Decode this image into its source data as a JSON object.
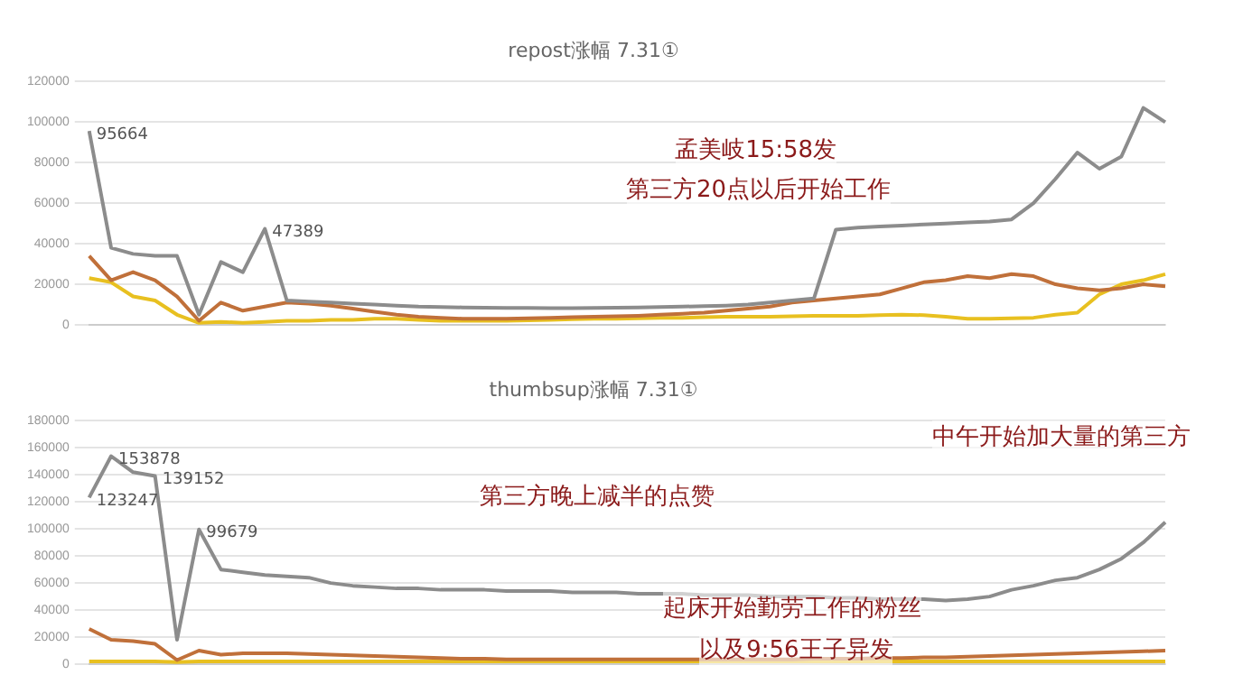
{
  "chart_data": [
    {
      "type": "line",
      "title": "repost涨幅 7.31①",
      "categories": [
        null,
        null,
        null,
        null,
        null,
        null,
        null,
        null,
        null,
        null,
        null,
        null,
        null,
        null,
        null,
        null,
        null,
        null,
        null,
        null,
        null,
        null,
        null,
        null,
        null,
        null,
        null,
        null,
        null,
        null,
        null,
        null,
        null,
        null,
        null,
        null,
        null,
        null,
        null,
        null,
        null,
        null,
        null,
        null,
        null,
        null,
        null,
        null,
        null,
        null
      ],
      "series": [
        {
          "color": "#8c8c8c",
          "values": [
            95664,
            38000,
            35000,
            34000,
            34000,
            5000,
            31000,
            26000,
            47389,
            12000,
            11500,
            11000,
            10500,
            10000,
            9500,
            9000,
            8800,
            8600,
            8500,
            8400,
            8300,
            8200,
            8200,
            8300,
            8500,
            8600,
            8800,
            9000,
            9200,
            9500,
            10000,
            11000,
            12000,
            13000,
            47000,
            48000,
            48500,
            49000,
            49500,
            50000,
            50500,
            51000,
            52000,
            60000,
            72000,
            85000,
            77000,
            83000,
            107000,
            100000
          ],
          "value_labels": [
            "95664",
            null,
            null,
            null,
            null,
            null,
            null,
            null,
            "47389",
            null,
            null,
            null,
            null,
            null,
            null,
            null,
            null,
            null,
            null,
            null,
            null,
            null,
            null,
            null,
            null,
            null,
            null,
            null,
            null,
            null,
            null,
            null,
            null,
            null,
            null,
            null,
            null,
            null,
            null,
            null,
            null,
            null,
            null,
            null,
            null,
            null,
            null,
            null,
            null,
            null
          ]
        },
        {
          "color": "#c0703a",
          "values": [
            34000,
            22000,
            26000,
            22000,
            14000,
            2000,
            11000,
            7000,
            9000,
            11000,
            10500,
            9500,
            8000,
            6500,
            5000,
            4000,
            3500,
            3000,
            3000,
            3000,
            3200,
            3500,
            3800,
            4000,
            4200,
            4500,
            5000,
            5500,
            6000,
            7000,
            8000,
            9000,
            11000,
            12000,
            13000,
            14000,
            15000,
            18000,
            21000,
            22000,
            24000,
            23000,
            25000,
            24000,
            20000,
            18000,
            17000,
            18000,
            20000,
            19000
          ]
        },
        {
          "color": "#e8c020",
          "values": [
            23000,
            21000,
            14000,
            12000,
            5000,
            1000,
            1500,
            1000,
            1500,
            2000,
            2000,
            2500,
            2500,
            3000,
            3000,
            2500,
            2000,
            2000,
            2000,
            2000,
            2200,
            2500,
            2800,
            3000,
            3000,
            3200,
            3500,
            3500,
            3800,
            4000,
            4000,
            4000,
            4200,
            4500,
            4500,
            4500,
            4800,
            5000,
            4800,
            4000,
            3000,
            3000,
            3200,
            3500,
            5000,
            6000,
            15000,
            20000,
            22000,
            25000
          ]
        }
      ],
      "ylim": [
        0,
        120000
      ],
      "yticks": [
        0,
        20000,
        40000,
        60000,
        80000,
        100000,
        120000
      ],
      "grid": "y",
      "annotations": [
        "孟美岐15:58发",
        "第三方20点以后开始工作"
      ]
    },
    {
      "type": "line",
      "title": "thumbsup涨幅 7.31①",
      "categories": [
        null,
        null,
        null,
        null,
        null,
        null,
        null,
        null,
        null,
        null,
        null,
        null,
        null,
        null,
        null,
        null,
        null,
        null,
        null,
        null,
        null,
        null,
        null,
        null,
        null,
        null,
        null,
        null,
        null,
        null,
        null,
        null,
        null,
        null,
        null,
        null,
        null,
        null,
        null,
        null,
        null,
        null,
        null,
        null,
        null,
        null,
        null,
        null,
        null,
        null
      ],
      "series": [
        {
          "color": "#8c8c8c",
          "values": [
            123247,
            153878,
            142000,
            139152,
            18000,
            99679,
            70000,
            68000,
            66000,
            65000,
            64000,
            60000,
            58000,
            57000,
            56000,
            56000,
            55000,
            55000,
            55000,
            54000,
            54000,
            54000,
            53000,
            53000,
            53000,
            52000,
            52000,
            52000,
            51000,
            51000,
            51000,
            50000,
            50000,
            50000,
            49000,
            49000,
            48000,
            48000,
            48000,
            47000,
            48000,
            50000,
            55000,
            58000,
            62000,
            64000,
            70000,
            78000,
            90000,
            105000
          ],
          "value_labels": [
            "123247",
            "153878",
            null,
            "139152",
            null,
            "99679",
            null,
            null,
            null,
            null,
            null,
            null,
            null,
            null,
            null,
            null,
            null,
            null,
            null,
            null,
            null,
            null,
            null,
            null,
            null,
            null,
            null,
            null,
            null,
            null,
            null,
            null,
            null,
            null,
            null,
            null,
            null,
            null,
            null,
            null,
            null,
            null,
            null,
            null,
            null,
            null,
            null,
            null,
            null,
            null
          ]
        },
        {
          "color": "#c0703a",
          "values": [
            26000,
            18000,
            17000,
            15000,
            3000,
            10000,
            7000,
            8000,
            8000,
            8000,
            7500,
            7000,
            6500,
            6000,
            5500,
            5000,
            4500,
            4000,
            4000,
            3500,
            3500,
            3500,
            3500,
            3500,
            3500,
            3500,
            3500,
            3500,
            3500,
            3500,
            3500,
            3500,
            3500,
            4000,
            4000,
            4000,
            4500,
            4500,
            5000,
            5000,
            5500,
            6000,
            6500,
            7000,
            7500,
            8000,
            8500,
            9000,
            9500,
            10000
          ]
        },
        {
          "color": "#e8c020",
          "values": [
            2000,
            2000,
            2000,
            2000,
            1500,
            2000,
            2000,
            2000,
            2000,
            2000,
            2000,
            2000,
            2000,
            2000,
            2000,
            2000,
            2000,
            2000,
            2000,
            2000,
            2000,
            2000,
            2000,
            2000,
            2000,
            2000,
            2000,
            2000,
            2000,
            2000,
            2000,
            2000,
            2000,
            2000,
            2000,
            2000,
            2000,
            2000,
            2000,
            2000,
            2000,
            2000,
            2000,
            2000,
            2000,
            2000,
            2000,
            2000,
            2000,
            2000
          ]
        }
      ],
      "ylim": [
        0,
        180000
      ],
      "yticks": [
        0,
        20000,
        40000,
        60000,
        80000,
        100000,
        120000,
        140000,
        160000,
        180000
      ],
      "grid": "y",
      "annotations": [
        "中午开始加大量的第三方",
        "第三方晚上减半的点赞",
        "起床开始勤劳工作的粉丝",
        "以及9:56王子异发"
      ]
    }
  ]
}
